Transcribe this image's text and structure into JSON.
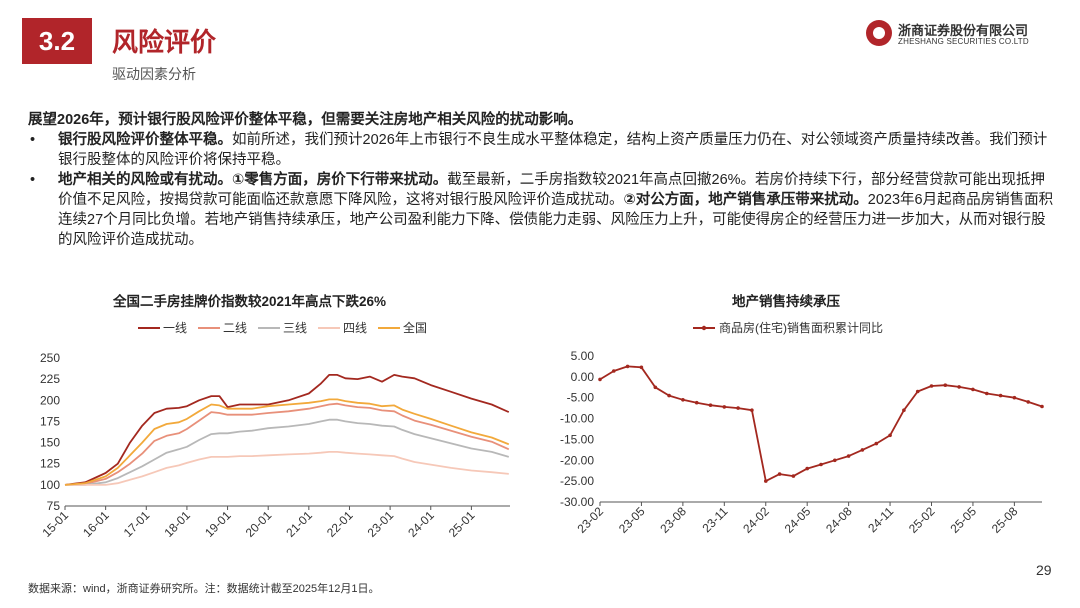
{
  "header": {
    "section_number": "3.2",
    "section_title": "风险评价",
    "section_subtitle": "驱动因素分析",
    "logo_cn": "浙商证券股份有限公司",
    "logo_en": "ZHESHANG SECURITIES CO.LTD"
  },
  "body": {
    "lead": "展望2026年，预计银行股风险评价整体平稳，但需要关注房地产相关风险的扰动影响。",
    "bullet1_bold": "银行股风险评价整体平稳。",
    "bullet1_text": "如前所述，我们预计2026年上市银行不良生成水平整体稳定，结构上资产质量压力仍在、对公领域资产质量持续改善。我们预计银行股整体的风险评价将保持平稳。",
    "bullet2_bold1": "地产相关的风险或有扰动。①零售方面，房价下行带来扰动。",
    "bullet2_text1": "截至最新，二手房指数较2021年高点回撤26%。若房价持续下行，部分经营贷款可能出现抵押价值不足风险，按揭贷款可能面临还款意愿下降风险，这将对银行股风险评价造成扰动。",
    "bullet2_bold2": "②对公方面，地产销售承压带来扰动。",
    "bullet2_text2": "2023年6月起商品房销售面积连续27个月同比负增。若地产销售持续承压，地产公司盈利能力下降、偿债能力走弱、风险压力上升，可能使得房企的经营压力进一步加大，从而对银行股的风险评价造成扰动。"
  },
  "footer": {
    "source": "数据来源：wind，浙商证券研究所。注：数据统计截至2025年12月1日。",
    "page": "29"
  },
  "chart_data": [
    {
      "type": "line",
      "title": "全国二手房挂牌价指数较2021年高点下跌26%",
      "ylim": [
        75,
        250
      ],
      "yticks": [
        75,
        100,
        125,
        150,
        175,
        200,
        225,
        250
      ],
      "x_ticklabels": [
        "15-01",
        "16-01",
        "17-01",
        "18-01",
        "19-01",
        "20-01",
        "21-01",
        "22-01",
        "23-01",
        "24-01",
        "25-01"
      ],
      "legend_position": "top",
      "x": [
        2015.0,
        2015.5,
        2016.0,
        2016.3,
        2016.6,
        2016.9,
        2017.2,
        2017.5,
        2017.8,
        2018.0,
        2018.3,
        2018.6,
        2018.8,
        2019.0,
        2019.3,
        2019.6,
        2020.0,
        2020.5,
        2021.0,
        2021.3,
        2021.5,
        2021.7,
        2021.9,
        2022.2,
        2022.5,
        2022.8,
        2023.1,
        2023.3,
        2023.6,
        2024.0,
        2024.5,
        2025.0,
        2025.5,
        2025.92
      ],
      "series": [
        {
          "name": "一线",
          "color": "#a3281f",
          "values": [
            100,
            103,
            114,
            125,
            150,
            170,
            185,
            190,
            191,
            193,
            200,
            205,
            205,
            192,
            195,
            195,
            195,
            200,
            208,
            220,
            230,
            230,
            226,
            225,
            228,
            222,
            230,
            228,
            226,
            218,
            210,
            202,
            195,
            186
          ]
        },
        {
          "name": "二线",
          "color": "#e8907a",
          "values": [
            100,
            101,
            107,
            115,
            125,
            137,
            152,
            158,
            161,
            166,
            176,
            186,
            185,
            183,
            183,
            183,
            185,
            187,
            190,
            193,
            195,
            196,
            194,
            192,
            191,
            188,
            187,
            182,
            176,
            171,
            164,
            157,
            151,
            142
          ]
        },
        {
          "name": "三线",
          "color": "#b8b8b8",
          "values": [
            100,
            100,
            103,
            108,
            115,
            122,
            130,
            138,
            142,
            145,
            153,
            160,
            161,
            161,
            163,
            164,
            167,
            169,
            172,
            175,
            177,
            177,
            175,
            173,
            172,
            170,
            169,
            165,
            160,
            155,
            149,
            143,
            139,
            133
          ]
        },
        {
          "name": "四线",
          "color": "#f6c8b8",
          "values": [
            100,
            100,
            100,
            102,
            106,
            110,
            115,
            120,
            123,
            126,
            130,
            133,
            133,
            133,
            134,
            134,
            135,
            136,
            137,
            138,
            139,
            139,
            138,
            137,
            136,
            135,
            134,
            131,
            127,
            124,
            120,
            117,
            115,
            113
          ]
        },
        {
          "name": "全国",
          "color": "#f2a93b",
          "values": [
            100,
            102,
            110,
            120,
            135,
            150,
            166,
            172,
            174,
            178,
            187,
            195,
            194,
            190,
            190,
            190,
            193,
            195,
            197,
            199,
            201,
            201,
            199,
            197,
            196,
            193,
            194,
            189,
            184,
            178,
            170,
            162,
            156,
            148
          ]
        }
      ]
    },
    {
      "type": "line",
      "title": "地产销售持续承压",
      "ylim": [
        -30,
        5
      ],
      "yticks": [
        5,
        0,
        -5,
        -10,
        -15,
        -20,
        -25,
        -30
      ],
      "ytick_labels": [
        "5.00",
        "0.00",
        "-5.00",
        "-10.00",
        "-15.00",
        "-20.00",
        "-25.00",
        "-30.00"
      ],
      "x_ticklabels": [
        "23-02",
        "23-05",
        "23-08",
        "23-11",
        "24-02",
        "24-05",
        "24-08",
        "24-11",
        "25-02",
        "25-05",
        "25-08"
      ],
      "legend_position": "top",
      "series": [
        {
          "name": "商品房(住宅)销售面积累计同比",
          "color": "#a3281f",
          "x": [
            0,
            1,
            2,
            3,
            4,
            5,
            6,
            7,
            8,
            9,
            10,
            11,
            12,
            13,
            14,
            15,
            16,
            17,
            18,
            19,
            20,
            21,
            22,
            23,
            24,
            25,
            26,
            27,
            28,
            29,
            30,
            31,
            32
          ],
          "values": [
            -0.6,
            1.4,
            2.5,
            2.3,
            -2.5,
            -4.5,
            -5.5,
            -6.2,
            -6.8,
            -7.2,
            -7.5,
            -8,
            -25,
            -23.3,
            -23.8,
            -22,
            -21,
            -20,
            -19,
            -17.5,
            -16,
            -14,
            -8,
            -3.5,
            -2.2,
            -2,
            -2.4,
            -3,
            -4,
            -4.5,
            -5,
            -6,
            -7.1
          ]
        }
      ]
    }
  ]
}
